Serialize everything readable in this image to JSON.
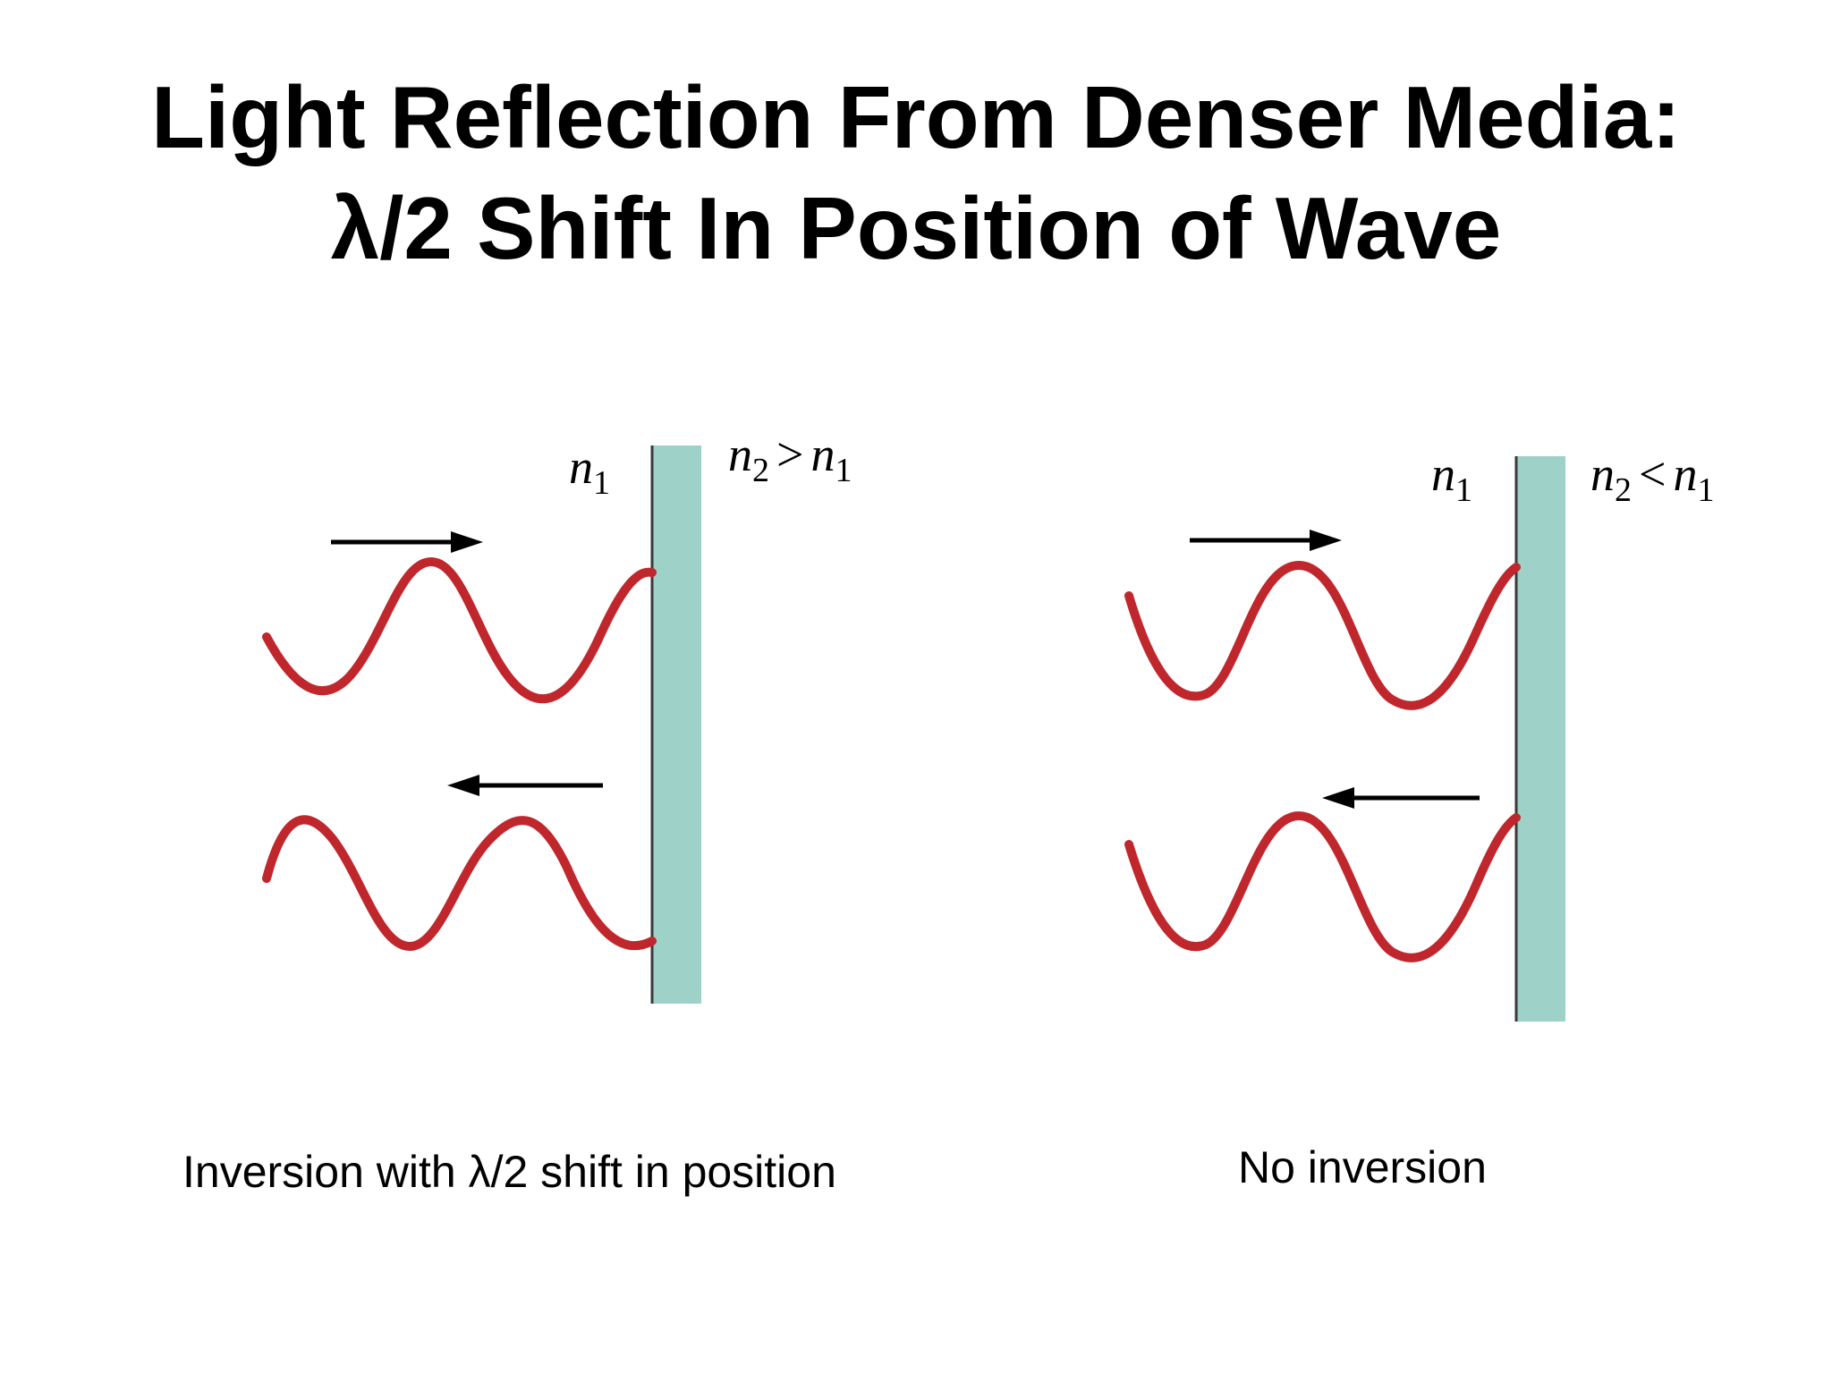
{
  "title": {
    "line1": "Light Reflection From Denser Media:",
    "line2": "λ/2 Shift In Position of Wave"
  },
  "panels": [
    {
      "id": "left",
      "medium_left": {
        "symbol": "n",
        "subscript": "1"
      },
      "medium_right": {
        "symbol_a": "n",
        "subscript_a": "2",
        "relation": ">",
        "symbol_b": "n",
        "subscript_b": "1"
      },
      "caption": "Inversion with λ/2 shift in position",
      "inverted": true
    },
    {
      "id": "right",
      "medium_left": {
        "symbol": "n",
        "subscript": "1"
      },
      "medium_right": {
        "symbol_a": "n",
        "subscript_a": "2",
        "relation": "<",
        "symbol_b": "n",
        "subscript_b": "1"
      },
      "caption": "No inversion",
      "inverted": false
    }
  ],
  "colors": {
    "wave": "#c0272d",
    "boundary": "#9ed2c8",
    "boundary_edge": "#3a3a3a",
    "arrow": "#000000",
    "text": "#000000"
  },
  "icons": {
    "incident_arrow": "arrow-right-icon",
    "reflected_arrow": "arrow-left-icon"
  }
}
